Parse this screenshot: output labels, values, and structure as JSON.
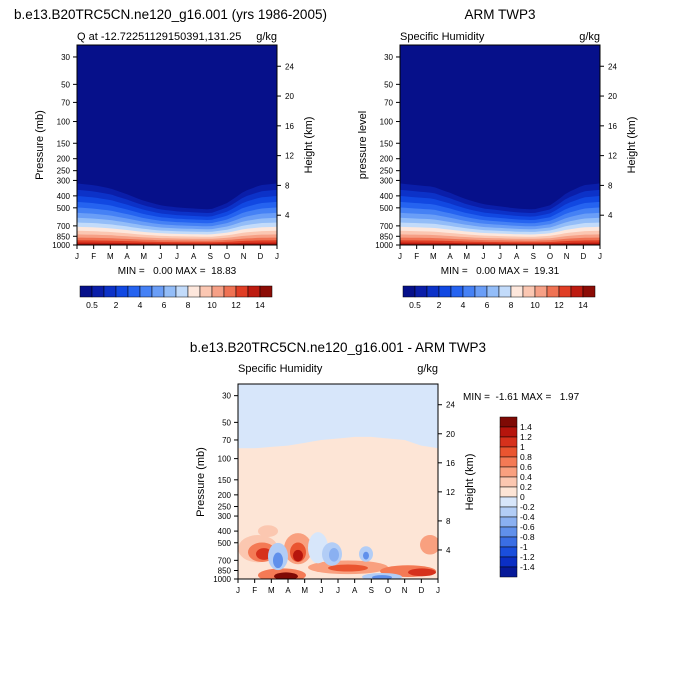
{
  "chart_data": [
    {
      "type": "heatmap",
      "title": "b.e13.B20TRC5CN.ne120_g16.001 (yrs 1986-2005)",
      "subtitle_left": "Q at -12.72251129150391,131.25",
      "subtitle_right": "g/kg",
      "ylabel": "Pressure (mb)",
      "ylabel_right": "Height (km)",
      "x_ticks": [
        "J",
        "F",
        "M",
        "A",
        "M",
        "J",
        "J",
        "A",
        "S",
        "O",
        "N",
        "D",
        "J"
      ],
      "y_ticks": [
        "30",
        "50",
        "70",
        "100",
        "150",
        "200",
        "250",
        "300",
        "400",
        "500",
        "700",
        "850",
        "1000"
      ],
      "y_ticks_right": [
        "24",
        "20",
        "16",
        "12",
        "8",
        "4"
      ],
      "ylim": [
        1000,
        24
      ],
      "min_max_text": "MIN =   0.00 MAX =  18.83",
      "colorbar_labels": [
        "0.5",
        "2",
        "4",
        "6",
        "8",
        "10",
        "12",
        "14"
      ],
      "moist_top_mb": [
        280,
        290,
        310,
        350,
        400,
        440,
        460,
        470,
        480,
        420,
        330,
        290,
        280
      ]
    },
    {
      "type": "heatmap",
      "title": "ARM TWP3",
      "subtitle_left": "Specific Humidity",
      "subtitle_right": "g/kg",
      "ylabel": "pressure level",
      "ylabel_right": "Height (km)",
      "x_ticks": [
        "J",
        "F",
        "M",
        "A",
        "M",
        "J",
        "J",
        "A",
        "S",
        "O",
        "N",
        "D",
        "J"
      ],
      "y_ticks": [
        "30",
        "50",
        "70",
        "100",
        "150",
        "200",
        "250",
        "300",
        "400",
        "500",
        "700",
        "850",
        "1000"
      ],
      "y_ticks_right": [
        "24",
        "20",
        "16",
        "12",
        "8",
        "4"
      ],
      "ylim": [
        1000,
        24
      ],
      "min_max_text": "MIN =   0.00 MAX =  19.31",
      "colorbar_labels": [
        "0.5",
        "2",
        "4",
        "6",
        "8",
        "10",
        "12",
        "14"
      ],
      "moist_top_mb": [
        280,
        290,
        300,
        340,
        390,
        430,
        450,
        470,
        480,
        440,
        340,
        290,
        280
      ]
    },
    {
      "type": "heatmap",
      "title": "b.e13.B20TRC5CN.ne120_g16.001 - ARM TWP3",
      "subtitle_left": "Specific Humidity",
      "subtitle_right": "g/kg",
      "ylabel": "Pressure (mb)",
      "ylabel_right": "Height (km)",
      "x_ticks": [
        "J",
        "F",
        "M",
        "A",
        "M",
        "J",
        "J",
        "A",
        "S",
        "O",
        "N",
        "D",
        "J"
      ],
      "y_ticks": [
        "30",
        "50",
        "70",
        "100",
        "150",
        "200",
        "250",
        "300",
        "400",
        "500",
        "700",
        "850",
        "1000"
      ],
      "y_ticks_right": [
        "24",
        "20",
        "16",
        "12",
        "8",
        "4"
      ],
      "ylim": [
        1000,
        24
      ],
      "min_max_text": "MIN =  -1.61 MAX =   1.97",
      "colorbar_labels": [
        "1.4",
        "1.2",
        "1",
        "0.8",
        "0.6",
        "0.4",
        "0.2",
        "0",
        "-0.2",
        "-0.4",
        "-0.6",
        "-0.8",
        "-1",
        "-1.2",
        "-1.4"
      ]
    }
  ],
  "colors": {
    "qscale": [
      "#06108a",
      "#0a1ea9",
      "#0c32c8",
      "#1148e2",
      "#2563f0",
      "#4581f5",
      "#6a9ef7",
      "#93bdf8",
      "#c2dbfa",
      "#fde7dc",
      "#fbc7b2",
      "#f6a086",
      "#ef7253",
      "#e03e25",
      "#bd1b10",
      "#8c0c06"
    ],
    "diffscale": [
      "#7f0a05",
      "#b6150d",
      "#d6311c",
      "#ea5530",
      "#f47a55",
      "#f9a07f",
      "#fbc7b0",
      "#fde5d6",
      "#d7e6fa",
      "#b2cdf6",
      "#8ab0f1",
      "#6090eb",
      "#3a6ee4",
      "#1a4edc",
      "#0b2fc4",
      "#071a99"
    ],
    "diff_pos_small": "#fde5d6",
    "diff_neg_small": "#d7e6fa"
  }
}
